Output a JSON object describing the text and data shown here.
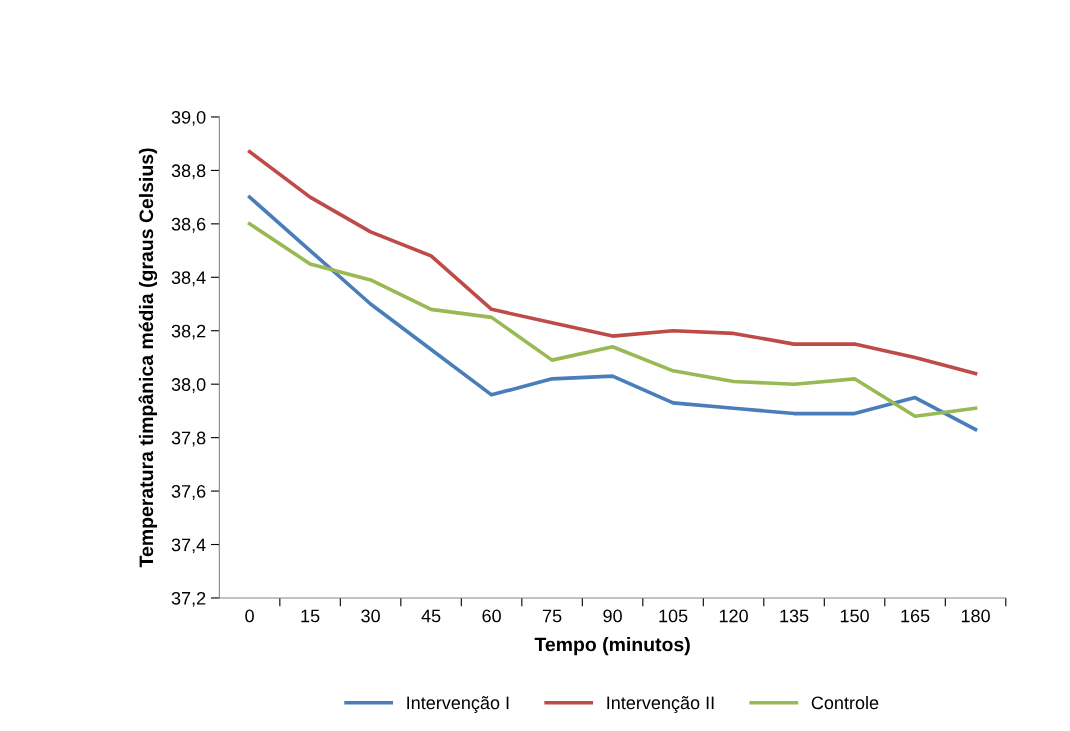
{
  "chart_data": {
    "type": "line",
    "xlabel": "Tempo (minutos)",
    "ylabel": "Temperatura timpânica média (graus Celsius)",
    "categories": [
      "0",
      "15",
      "30",
      "45",
      "60",
      "75",
      "90",
      "105",
      "120",
      "135",
      "150",
      "165",
      "180"
    ],
    "series": [
      {
        "name": "Intervenção I",
        "color": "#4a7ebb",
        "values": [
          38.7,
          38.5,
          38.3,
          38.13,
          37.96,
          38.02,
          38.03,
          37.93,
          37.91,
          37.89,
          37.89,
          37.95,
          37.83
        ]
      },
      {
        "name": "Intervenção II",
        "color": "#be4b48",
        "values": [
          38.87,
          38.7,
          38.57,
          38.48,
          38.28,
          38.23,
          38.18,
          38.2,
          38.19,
          38.15,
          38.15,
          38.1,
          38.04
        ]
      },
      {
        "name": "Controle",
        "color": "#98b954",
        "values": [
          38.6,
          38.45,
          38.39,
          38.28,
          38.25,
          38.09,
          38.14,
          38.05,
          38.01,
          38.0,
          38.02,
          37.88,
          37.91
        ]
      }
    ],
    "ylim": [
      37.2,
      39.0
    ],
    "yticks": [
      {
        "value": 37.2,
        "label": "37,2"
      },
      {
        "value": 37.4,
        "label": "37,4"
      },
      {
        "value": 37.6,
        "label": "37,6"
      },
      {
        "value": 37.8,
        "label": "37,8"
      },
      {
        "value": 38.0,
        "label": "38,0"
      },
      {
        "value": 38.2,
        "label": "38,2"
      },
      {
        "value": 38.4,
        "label": "38,4"
      },
      {
        "value": 38.6,
        "label": "38,6"
      },
      {
        "value": 38.8,
        "label": "38,8"
      },
      {
        "value": 39.0,
        "label": "39,0"
      }
    ],
    "grid": false,
    "legend": "bottom",
    "marker": "none",
    "line_style": "solid"
  }
}
